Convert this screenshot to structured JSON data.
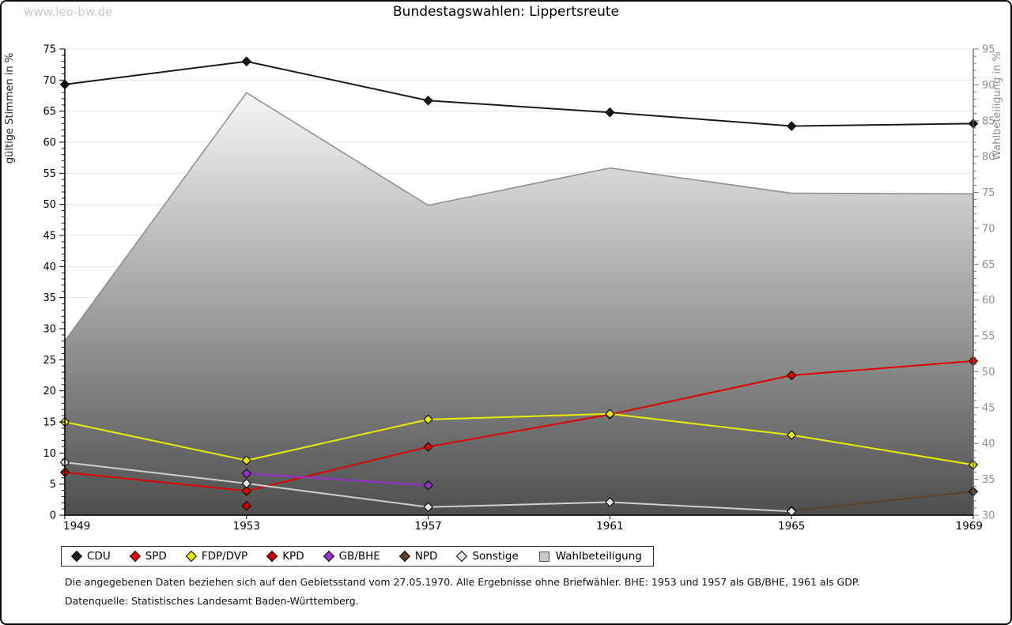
{
  "watermark": "www.leo-bw.de",
  "title": "Bundestagswahlen: Lippertsreute",
  "chart_data": {
    "type": "line",
    "x": [
      1949,
      1953,
      1957,
      1961,
      1965,
      1969
    ],
    "left_axis": {
      "label": "gültige Stimmen in %",
      "min": 0,
      "max": 75,
      "tick_step": 5
    },
    "right_axis": {
      "label": "Wahlbeteiligung in %",
      "min": 30,
      "max": 95,
      "tick_step": 5
    },
    "grid": true,
    "legend_position": "bottom",
    "series": [
      {
        "name": "Wahlbeteiligung",
        "kind": "area",
        "axis": "right",
        "color": "#8c8c8c",
        "values": [
          54.3,
          88.9,
          73.2,
          78.4,
          74.9,
          74.8
        ]
      },
      {
        "name": "CDU",
        "kind": "line",
        "axis": "left",
        "color": "#1a1a1a",
        "values": [
          69.3,
          73.0,
          66.7,
          64.8,
          62.6,
          63.0
        ]
      },
      {
        "name": "SPD",
        "kind": "line",
        "axis": "left",
        "color": "#e00000",
        "values": [
          6.9,
          3.9,
          11.0,
          16.2,
          22.5,
          24.8
        ]
      },
      {
        "name": "FDP/DVP",
        "kind": "line",
        "axis": "left",
        "color": "#ecec00",
        "values": [
          15.0,
          8.8,
          15.4,
          16.3,
          12.9,
          8.1
        ]
      },
      {
        "name": "KPD",
        "kind": "line",
        "axis": "left",
        "color": "#cc0000",
        "values": [
          null,
          1.5,
          null,
          null,
          null,
          null
        ]
      },
      {
        "name": "GB/BHE",
        "kind": "line",
        "axis": "left",
        "color": "#9b30d0",
        "values": [
          null,
          6.7,
          4.8,
          null,
          null,
          null
        ]
      },
      {
        "name": "NPD",
        "kind": "line",
        "axis": "left",
        "color": "#5f4025",
        "values": [
          null,
          null,
          null,
          null,
          0.7,
          3.8
        ]
      },
      {
        "name": "Sonstige",
        "kind": "line",
        "axis": "left",
        "color": "#cfcfcf",
        "marker_fill": "#e6e6e6",
        "values": [
          8.5,
          5.1,
          1.3,
          2.1,
          0.6,
          null
        ]
      }
    ]
  },
  "legend": {
    "items": [
      {
        "label": "CDU",
        "marker": "diamond",
        "color": "#1a1a1a"
      },
      {
        "label": "SPD",
        "marker": "diamond",
        "color": "#e00000"
      },
      {
        "label": "FDP/DVP",
        "marker": "diamond",
        "color": "#ecec00"
      },
      {
        "label": "KPD",
        "marker": "diamond",
        "color": "#cc0000"
      },
      {
        "label": "GB/BHE",
        "marker": "diamond",
        "color": "#9b30d0"
      },
      {
        "label": "NPD",
        "marker": "diamond",
        "color": "#5f4025"
      },
      {
        "label": "Sonstige",
        "marker": "diamond",
        "color": "#e6e6e6"
      },
      {
        "label": "Wahlbeteiligung",
        "marker": "square",
        "color": "#c8c8c8"
      }
    ]
  },
  "footnotes": [
    "Die angegebenen Daten beziehen sich auf den Gebietsstand vom 27.05.1970. Alle Ergebnisse ohne Briefwähler. BHE: 1953 und 1957 als GB/BHE, 1961 als GDP.",
    "Datenquelle: Statistisches Landesamt Baden-Württemberg."
  ]
}
